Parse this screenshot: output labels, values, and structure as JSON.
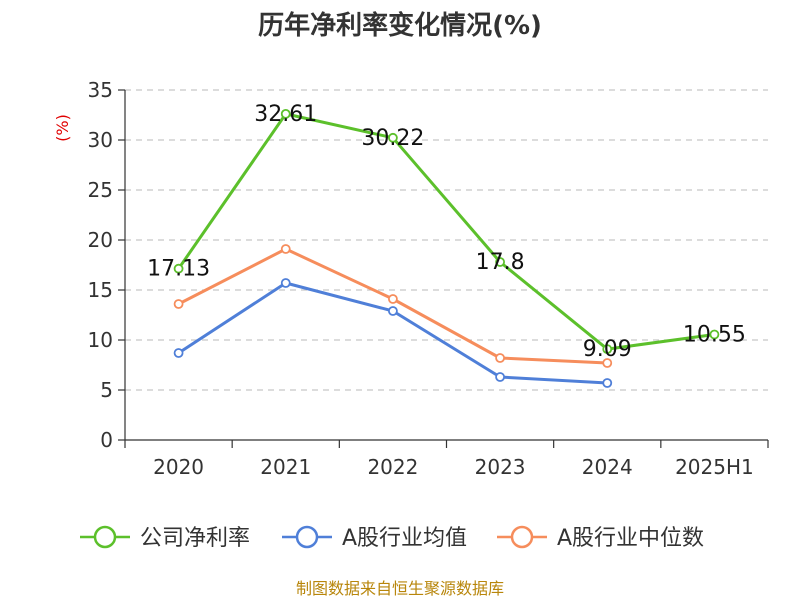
{
  "chart_data": {
    "type": "line",
    "title": "历年净利率变化情况(%)",
    "ylabel": "(%)",
    "xlabel": "",
    "categories": [
      "2020",
      "2021",
      "2022",
      "2023",
      "2024",
      "2025H1"
    ],
    "ylim": [
      0,
      35
    ],
    "yticks": [
      0,
      5,
      10,
      15,
      20,
      25,
      30,
      35
    ],
    "grid": true,
    "legend_position": "bottom",
    "series": [
      {
        "name": "公司净利率",
        "color": "#5cc02b",
        "values": [
          17.13,
          32.61,
          30.22,
          17.8,
          9.09,
          10.55
        ],
        "labels": [
          "17.13",
          "32.61",
          "30.22",
          "17.8",
          "9.09",
          "10.55"
        ]
      },
      {
        "name": "A股行业均值",
        "color": "#4f7fd8",
        "values": [
          8.7,
          15.7,
          12.9,
          6.3,
          5.7,
          null
        ],
        "labels": null
      },
      {
        "name": "A股行业中位数",
        "color": "#f68d5c",
        "values": [
          13.6,
          19.1,
          14.1,
          8.2,
          7.7,
          null
        ],
        "labels": null
      }
    ]
  },
  "source": "制图数据来自恒生聚源数据库"
}
